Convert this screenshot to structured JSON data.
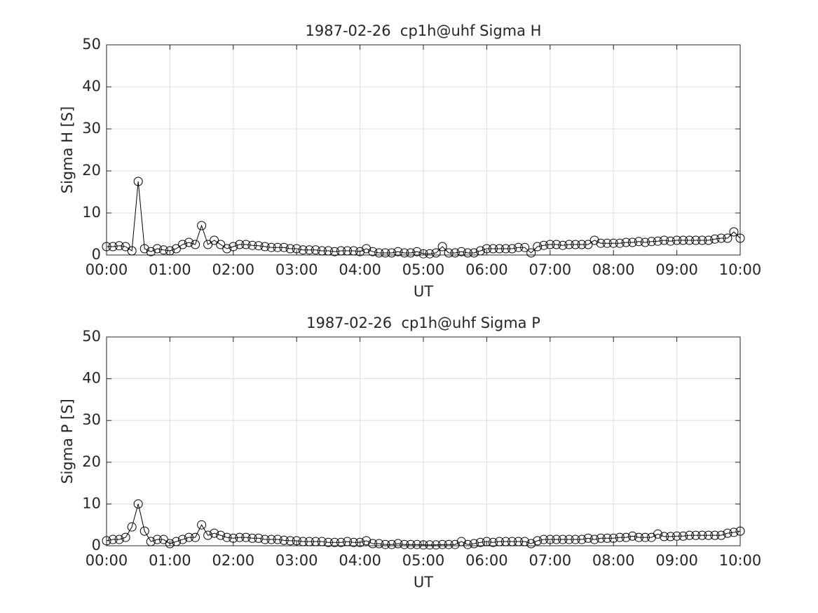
{
  "chart_data": [
    {
      "type": "line",
      "title": "1987-02-26  cp1h@uhf Sigma H",
      "xlabel": "UT",
      "ylabel": "Sigma H [S]",
      "x": [
        0,
        0.1,
        0.2,
        0.3,
        0.4,
        0.5,
        0.6,
        0.7,
        0.8,
        0.9,
        1,
        1.1,
        1.2,
        1.3,
        1.4,
        1.5,
        1.6,
        1.7,
        1.8,
        1.9,
        2,
        2.1,
        2.2,
        2.3,
        2.4,
        2.5,
        2.6,
        2.7,
        2.8,
        2.9,
        3,
        3.1,
        3.2,
        3.3,
        3.4,
        3.5,
        3.6,
        3.7,
        3.8,
        3.9,
        4,
        4.1,
        4.2,
        4.3,
        4.4,
        4.5,
        4.6,
        4.7,
        4.8,
        4.9,
        5,
        5.1,
        5.2,
        5.3,
        5.4,
        5.5,
        5.6,
        5.7,
        5.8,
        5.9,
        6,
        6.1,
        6.2,
        6.3,
        6.4,
        6.5,
        6.6,
        6.7,
        6.8,
        6.9,
        7,
        7.1,
        7.2,
        7.3,
        7.4,
        7.5,
        7.6,
        7.7,
        7.8,
        7.9,
        8,
        8.1,
        8.2,
        8.3,
        8.4,
        8.5,
        8.6,
        8.7,
        8.8,
        8.9,
        9,
        9.1,
        9.2,
        9.3,
        9.4,
        9.5,
        9.6,
        9.7,
        9.8,
        9.9,
        10
      ],
      "values": [
        2,
        2,
        2.2,
        2,
        1,
        17.5,
        1.5,
        0.8,
        1.5,
        1.2,
        1,
        1.5,
        2.5,
        3,
        2.5,
        7,
        2.5,
        3.5,
        2.5,
        1.5,
        2,
        2.5,
        2.5,
        2.3,
        2.2,
        2,
        1.8,
        1.8,
        1.8,
        1.5,
        1.5,
        1.2,
        1.2,
        1.2,
        1,
        1,
        0.8,
        1,
        1,
        1,
        0.8,
        1.5,
        0.8,
        0.5,
        0.5,
        0.5,
        0.8,
        0.5,
        0.5,
        0.8,
        0.3,
        0.3,
        0.5,
        2,
        0.5,
        0.5,
        0.8,
        0.5,
        0.5,
        1,
        1.5,
        1.5,
        1.5,
        1.5,
        1.5,
        1.8,
        1.8,
        0.5,
        2,
        2.3,
        2.5,
        2.5,
        2.3,
        2.5,
        2.5,
        2.5,
        2.5,
        3.5,
        2.8,
        2.8,
        2.8,
        2.8,
        3,
        3,
        3.2,
        3,
        3.2,
        3.3,
        3.5,
        3.3,
        3.5,
        3.5,
        3.5,
        3.5,
        3.5,
        3.5,
        3.8,
        4,
        4,
        5.5,
        4
      ],
      "color": "#000000",
      "marker": "circle",
      "xlim": [
        0,
        10
      ],
      "ylim": [
        0,
        50
      ],
      "xticks": [
        {
          "value": 0,
          "label": "00:00"
        },
        {
          "value": 1,
          "label": "01:00"
        },
        {
          "value": 2,
          "label": "02:00"
        },
        {
          "value": 3,
          "label": "03:00"
        },
        {
          "value": 4,
          "label": "04:00"
        },
        {
          "value": 5,
          "label": "05:00"
        },
        {
          "value": 6,
          "label": "06:00"
        },
        {
          "value": 7,
          "label": "07:00"
        },
        {
          "value": 8,
          "label": "08:00"
        },
        {
          "value": 9,
          "label": "09:00"
        },
        {
          "value": 10,
          "label": "10:00"
        }
      ],
      "yticks": [
        0,
        10,
        20,
        30,
        40,
        50
      ],
      "grid": true
    },
    {
      "type": "line",
      "title": "1987-02-26  cp1h@uhf Sigma P",
      "xlabel": "UT",
      "ylabel": "Sigma P [S]",
      "x": [
        0,
        0.1,
        0.2,
        0.3,
        0.4,
        0.5,
        0.6,
        0.7,
        0.8,
        0.9,
        1,
        1.1,
        1.2,
        1.3,
        1.4,
        1.5,
        1.6,
        1.7,
        1.8,
        1.9,
        2,
        2.1,
        2.2,
        2.3,
        2.4,
        2.5,
        2.6,
        2.7,
        2.8,
        2.9,
        3,
        3.1,
        3.2,
        3.3,
        3.4,
        3.5,
        3.6,
        3.7,
        3.8,
        3.9,
        4,
        4.1,
        4.2,
        4.3,
        4.4,
        4.5,
        4.6,
        4.7,
        4.8,
        4.9,
        5,
        5.1,
        5.2,
        5.3,
        5.4,
        5.5,
        5.6,
        5.7,
        5.8,
        5.9,
        6,
        6.1,
        6.2,
        6.3,
        6.4,
        6.5,
        6.6,
        6.7,
        6.8,
        6.9,
        7,
        7.1,
        7.2,
        7.3,
        7.4,
        7.5,
        7.6,
        7.7,
        7.8,
        7.9,
        8,
        8.1,
        8.2,
        8.3,
        8.4,
        8.5,
        8.6,
        8.7,
        8.8,
        8.9,
        9,
        9.1,
        9.2,
        9.3,
        9.4,
        9.5,
        9.6,
        9.7,
        9.8,
        9.9,
        10
      ],
      "values": [
        1.2,
        1.5,
        1.5,
        2,
        4.5,
        10,
        3.5,
        1,
        1.5,
        1.5,
        0.5,
        1,
        1.5,
        2,
        2,
        5,
        2.5,
        3,
        2.5,
        2,
        1.8,
        2,
        2,
        1.8,
        1.8,
        1.5,
        1.5,
        1.5,
        1.3,
        1.2,
        1.2,
        1,
        1,
        1,
        1,
        0.8,
        0.8,
        0.8,
        1,
        0.8,
        0.8,
        1.2,
        0.5,
        0.5,
        0.3,
        0.3,
        0.5,
        0.3,
        0.3,
        0.3,
        0.2,
        0.2,
        0.2,
        0.3,
        0.3,
        0.3,
        1,
        0.3,
        0.5,
        0.8,
        1,
        0.8,
        1,
        1,
        1,
        1,
        1,
        0.5,
        1.2,
        1.5,
        1.5,
        1.5,
        1.5,
        1.5,
        1.5,
        1.5,
        1.8,
        1.5,
        1.8,
        1.8,
        1.8,
        2,
        2,
        2.3,
        2,
        2,
        2,
        2.8,
        2.2,
        2.2,
        2.3,
        2.3,
        2.5,
        2.5,
        2.5,
        2.5,
        2.5,
        2.5,
        3,
        3.2,
        3.5
      ],
      "color": "#000000",
      "marker": "circle",
      "xlim": [
        0,
        10
      ],
      "ylim": [
        0,
        50
      ],
      "xticks": [
        {
          "value": 0,
          "label": "00:00"
        },
        {
          "value": 1,
          "label": "01:00"
        },
        {
          "value": 2,
          "label": "02:00"
        },
        {
          "value": 3,
          "label": "03:00"
        },
        {
          "value": 4,
          "label": "04:00"
        },
        {
          "value": 5,
          "label": "05:00"
        },
        {
          "value": 6,
          "label": "06:00"
        },
        {
          "value": 7,
          "label": "07:00"
        },
        {
          "value": 8,
          "label": "08:00"
        },
        {
          "value": 9,
          "label": "09:00"
        },
        {
          "value": 10,
          "label": "10:00"
        }
      ],
      "yticks": [
        0,
        10,
        20,
        30,
        40,
        50
      ],
      "grid": true
    }
  ]
}
